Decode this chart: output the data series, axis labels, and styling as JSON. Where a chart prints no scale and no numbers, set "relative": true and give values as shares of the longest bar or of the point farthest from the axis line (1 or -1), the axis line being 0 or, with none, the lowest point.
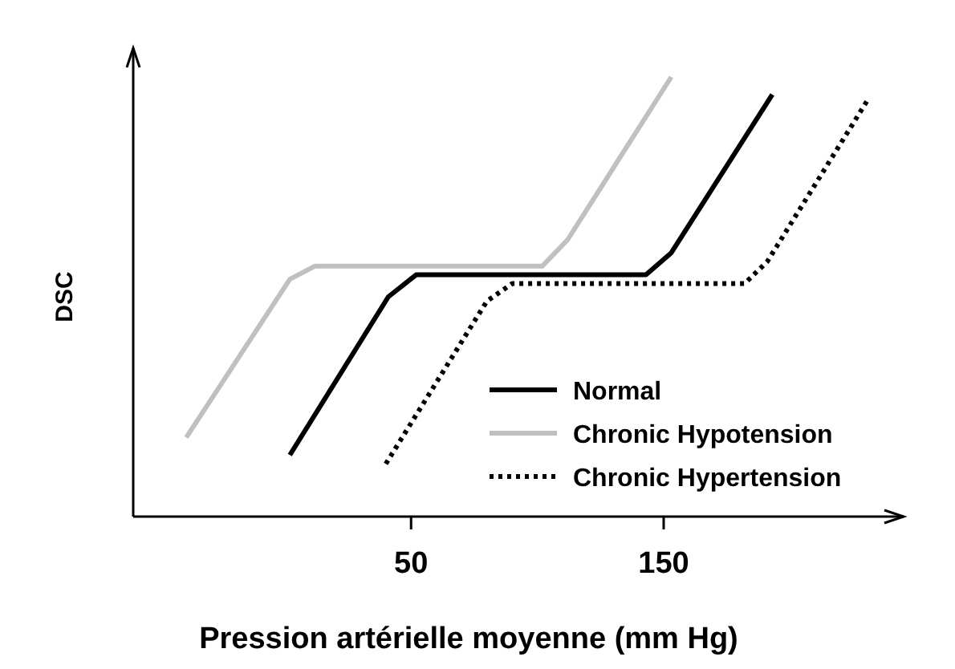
{
  "chart_data": {
    "type": "line",
    "relative": true,
    "xlabel": "Pression artérielle moyenne (mm Hg)",
    "ylabel": "DSC",
    "xlim": [
      -60,
      245
    ],
    "xticks": [
      50,
      150
    ],
    "legend": "bottom right",
    "grid": false,
    "marker": "none",
    "series": [
      {
        "name": "Normal",
        "color": "#000000",
        "line_style": "solid",
        "x": [
          2,
          41,
          52,
          143,
          153,
          193
        ],
        "values": [
          0.14,
          0.5,
          0.55,
          0.55,
          0.6,
          0.96
        ]
      },
      {
        "name": "Chronic Hypotension",
        "color": "#c0c0c0",
        "line_style": "solid",
        "x": [
          -39,
          2,
          12,
          102,
          112,
          153
        ],
        "values": [
          0.18,
          0.54,
          0.57,
          0.57,
          0.63,
          1
        ]
      },
      {
        "name": "Chronic Hypertension",
        "color": "#000000",
        "line_style": "dotted",
        "x": [
          40,
          80,
          90,
          182,
          191,
          231
        ],
        "values": [
          0.12,
          0.49,
          0.53,
          0.53,
          0.58,
          0.95
        ]
      }
    ]
  }
}
